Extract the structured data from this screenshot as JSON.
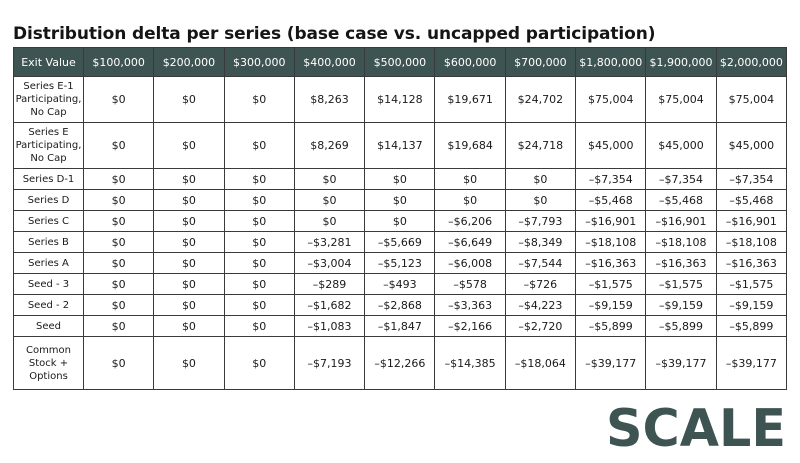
{
  "title": "Distribution delta per series (base case vs. uncapped participation)",
  "brand": {
    "logo_text": "SCALE",
    "color": "#3e5452"
  },
  "chart_data": {
    "type": "table",
    "title": "Distribution delta per series (base case vs. uncapped participation)",
    "columns": [
      "Exit Value",
      "$100,000",
      "$200,000",
      "$300,000",
      "$400,000",
      "$500,000",
      "$600,000",
      "$700,000",
      "$1,800,000",
      "$1,900,000",
      "$2,000,000"
    ],
    "rows": [
      {
        "label": "Series E-1 Participating, No Cap",
        "values": [
          "$0",
          "$0",
          "$0",
          "$8,263",
          "$14,128",
          "$19,671",
          "$24,702",
          "$75,004",
          "$75,004",
          "$75,004"
        ]
      },
      {
        "label": "Series E Participating, No Cap",
        "values": [
          "$0",
          "$0",
          "$0",
          "$8,269",
          "$14,137",
          "$19,684",
          "$24,718",
          "$45,000",
          "$45,000",
          "$45,000"
        ]
      },
      {
        "label": "Series D-1",
        "values": [
          "$0",
          "$0",
          "$0",
          "$0",
          "$0",
          "$0",
          "$0",
          "–$7,354",
          "–$7,354",
          "–$7,354"
        ]
      },
      {
        "label": "Series D",
        "values": [
          "$0",
          "$0",
          "$0",
          "$0",
          "$0",
          "$0",
          "$0",
          "–$5,468",
          "–$5,468",
          "–$5,468"
        ]
      },
      {
        "label": "Series C",
        "values": [
          "$0",
          "$0",
          "$0",
          "$0",
          "$0",
          "–$6,206",
          "–$7,793",
          "–$16,901",
          "–$16,901",
          "–$16,901"
        ]
      },
      {
        "label": "Series B",
        "values": [
          "$0",
          "$0",
          "$0",
          "–$3,281",
          "–$5,669",
          "–$6,649",
          "–$8,349",
          "–$18,108",
          "–$18,108",
          "–$18,108"
        ]
      },
      {
        "label": "Series A",
        "values": [
          "$0",
          "$0",
          "$0",
          "–$3,004",
          "–$5,123",
          "–$6,008",
          "–$7,544",
          "–$16,363",
          "–$16,363",
          "–$16,363"
        ]
      },
      {
        "label": "Seed - 3",
        "values": [
          "$0",
          "$0",
          "$0",
          "–$289",
          "–$493",
          "–$578",
          "–$726",
          "–$1,575",
          "–$1,575",
          "–$1,575"
        ]
      },
      {
        "label": "Seed - 2",
        "values": [
          "$0",
          "$0",
          "$0",
          "–$1,682",
          "–$2,868",
          "–$3,363",
          "–$4,223",
          "–$9,159",
          "–$9,159",
          "–$9,159"
        ]
      },
      {
        "label": "Seed",
        "values": [
          "$0",
          "$0",
          "$0",
          "–$1,083",
          "–$1,847",
          "–$2,166",
          "–$2,720",
          "–$5,899",
          "–$5,899",
          "–$5,899"
        ]
      },
      {
        "label": "Common Stock + Options",
        "values": [
          "$0",
          "$0",
          "$0",
          "–$7,193",
          "–$12,266",
          "–$14,385",
          "–$18,064",
          "–$39,177",
          "–$39,177",
          "–$39,177"
        ]
      }
    ]
  }
}
